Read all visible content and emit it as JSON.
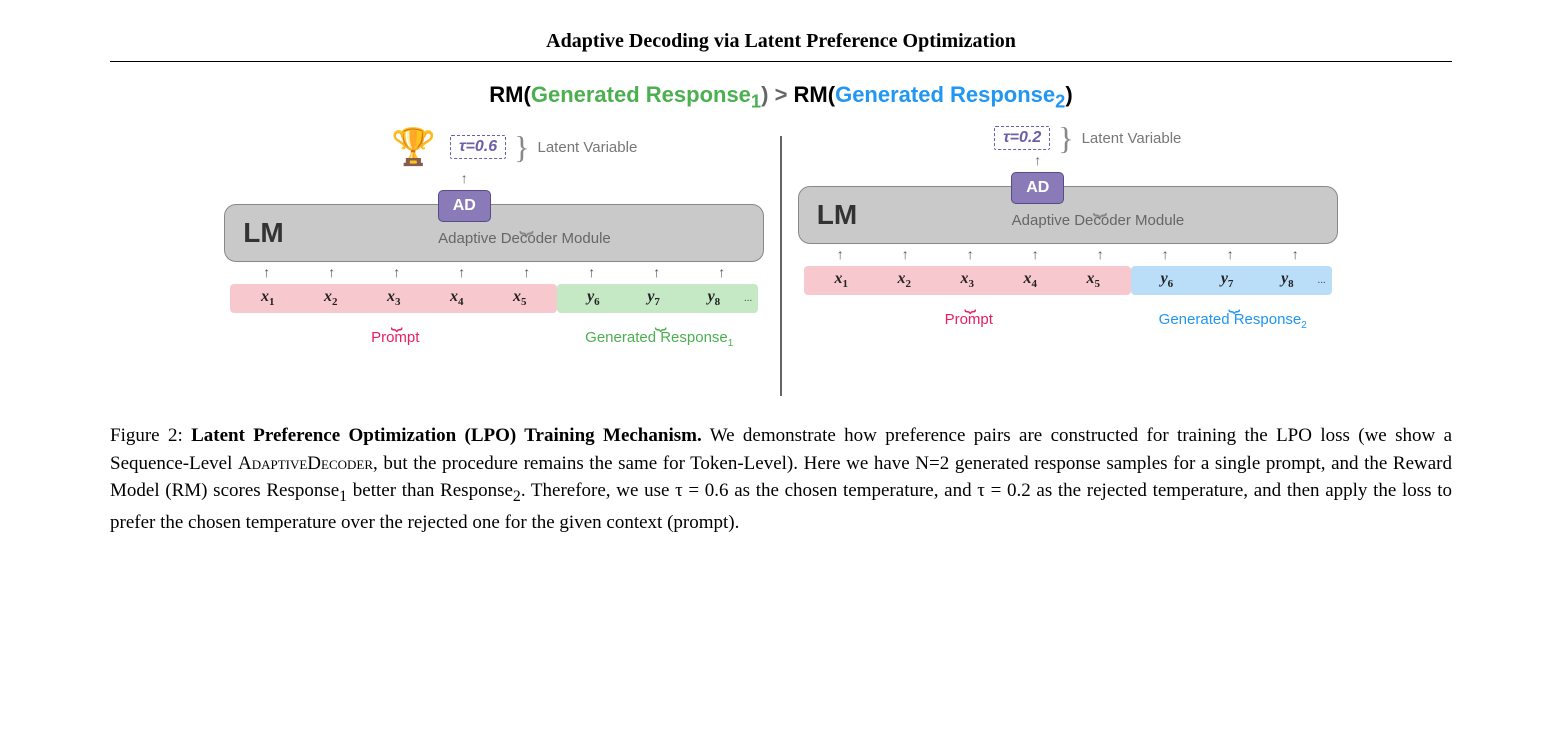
{
  "title": "Adaptive Decoding via Latent Preference Optimization",
  "rm_header": {
    "prefix1": "RM(",
    "resp1": "Generated Response",
    "sub1": "1",
    "gt": ") > ",
    "prefix2": "RM(",
    "resp2": "Generated Response",
    "sub2": "2",
    "suffix": ")"
  },
  "colors": {
    "green": "#4caf50",
    "blue": "#2196f3",
    "pink": "#e91e63",
    "purple": "#6b5fa8",
    "ad_bg": "#8b7ab8",
    "lm_bg": "#c9c9c9",
    "prompt_bg": "#f8c8cf",
    "gen_g_bg": "#c5e8c5",
    "gen_b_bg": "#bbdef8"
  },
  "panels": {
    "left": {
      "has_trophy": true,
      "tau": "τ=0.6",
      "latent_label": "Latent Variable",
      "ad": "AD",
      "lm": "LM",
      "adm": "Adaptive Decoder Module",
      "x_tokens": [
        "x",
        "x",
        "x",
        "x",
        "x"
      ],
      "x_subs": [
        "1",
        "2",
        "3",
        "4",
        "5"
      ],
      "y_tokens": [
        "y",
        "y",
        "y"
      ],
      "y_subs": [
        "6",
        "7",
        "8"
      ],
      "dots": "...",
      "prompt_label": "Prompt",
      "gen_label": "Generated Response",
      "gen_sub": "1",
      "gen_color": "green"
    },
    "right": {
      "has_trophy": false,
      "tau": "τ=0.2",
      "latent_label": "Latent Variable",
      "ad": "AD",
      "lm": "LM",
      "adm": "Adaptive Decoder Module",
      "x_tokens": [
        "x",
        "x",
        "x",
        "x",
        "x"
      ],
      "x_subs": [
        "1",
        "2",
        "3",
        "4",
        "5"
      ],
      "y_tokens": [
        "y",
        "y",
        "y"
      ],
      "y_subs": [
        "6",
        "7",
        "8"
      ],
      "dots": "...",
      "prompt_label": "Prompt",
      "gen_label": "Generated Response",
      "gen_sub": "2",
      "gen_color": "blue"
    }
  },
  "caption": {
    "fig_label": "Figure 2: ",
    "bold": "Latent Preference Optimization (LPO) Training Mechanism.",
    "body1": " We demonstrate how preference pairs are constructed for training the LPO loss (we show a Sequence-Level ",
    "sc": "AdaptiveDecoder",
    "body2": ", but the procedure remains the same for Token-Level). Here we have N=2 generated response samples for a single prompt, and the Reward Model (RM) scores Response",
    "sub1": "1",
    "body3": " better than Response",
    "sub2": "2",
    "body4": ". Therefore, we use τ = 0.6 as the chosen temperature, and τ = 0.2 as the rejected temperature, and then apply the loss to prefer the chosen temperature over the rejected one for the given context (prompt)."
  }
}
